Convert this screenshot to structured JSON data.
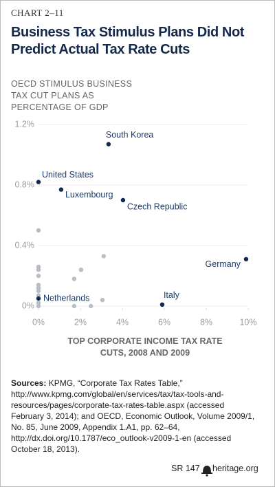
{
  "chart_data": {
    "type": "scatter",
    "kicker": "CHART 2–11",
    "title": "Business Tax Stimulus Plans Did Not Predict Actual Tax Rate Cuts",
    "ylabel": "OECD STIMULUS BUSINESS TAX CUT PLANS AS PERCENTAGE OF GDP",
    "xlabel": "TOP CORPORATE INCOME TAX RATE CUTS, 2008 AND 2009",
    "xlim": [
      0,
      10
    ],
    "ylim": [
      0,
      1.2
    ],
    "xticks": [
      {
        "value": 0,
        "label": "0%"
      },
      {
        "value": 2,
        "label": "2%"
      },
      {
        "value": 4,
        "label": "4%"
      },
      {
        "value": 6,
        "label": "6%"
      },
      {
        "value": 8,
        "label": "8%"
      },
      {
        "value": 10,
        "label": "10%"
      }
    ],
    "yticks": [
      {
        "value": 0,
        "label": "0%"
      },
      {
        "value": 0.4,
        "label": "0.4%"
      },
      {
        "value": 0.8,
        "label": "0.8%"
      },
      {
        "value": 1.2,
        "label": "1.2%"
      }
    ],
    "grid": true,
    "series": [
      {
        "color": "#0f2a4e",
        "labels": [
          "South Korea",
          "United States",
          "Luxembourg",
          "Czech Republic",
          "Germany",
          "Italy",
          "Netherlands"
        ],
        "x": [
          3.34,
          0,
          1.08,
          4.03,
          9.9,
          5.9,
          0
        ],
        "values": [
          1.07,
          0.82,
          0.77,
          0.7,
          0.31,
          0.01,
          0.05
        ]
      },
      {
        "color": "#b9bdc4",
        "x": [
          0,
          0,
          0,
          0,
          0,
          0,
          0,
          0,
          0,
          0,
          1.7,
          2.03,
          3.11,
          3.05,
          1.7,
          2.5
        ],
        "values": [
          0.5,
          0.26,
          0.24,
          0.2,
          0.14,
          0.12,
          0.1,
          0.07,
          0.02,
          0,
          0.18,
          0.24,
          0.33,
          0.04,
          0,
          0
        ]
      }
    ],
    "sources_label": "Sources:",
    "sources_text": "KPMG, “Corporate Tax Rates Table,” http://www.kpmg.com/global/en/services/tax/tax-tools-and-resources/pages/corporate-tax-rates-table.aspx (accessed February 3, 2014); and OECD, Economic Outlook, Volume 2009/1, No. 85, June 2009, Appendix 1.A1, pp. 62–64, http://dx.doi.org/10.1787/eco_outlook-v2009-1-en (accessed October 18, 2013).",
    "report": "SR 147",
    "site": "heritage.org"
  }
}
